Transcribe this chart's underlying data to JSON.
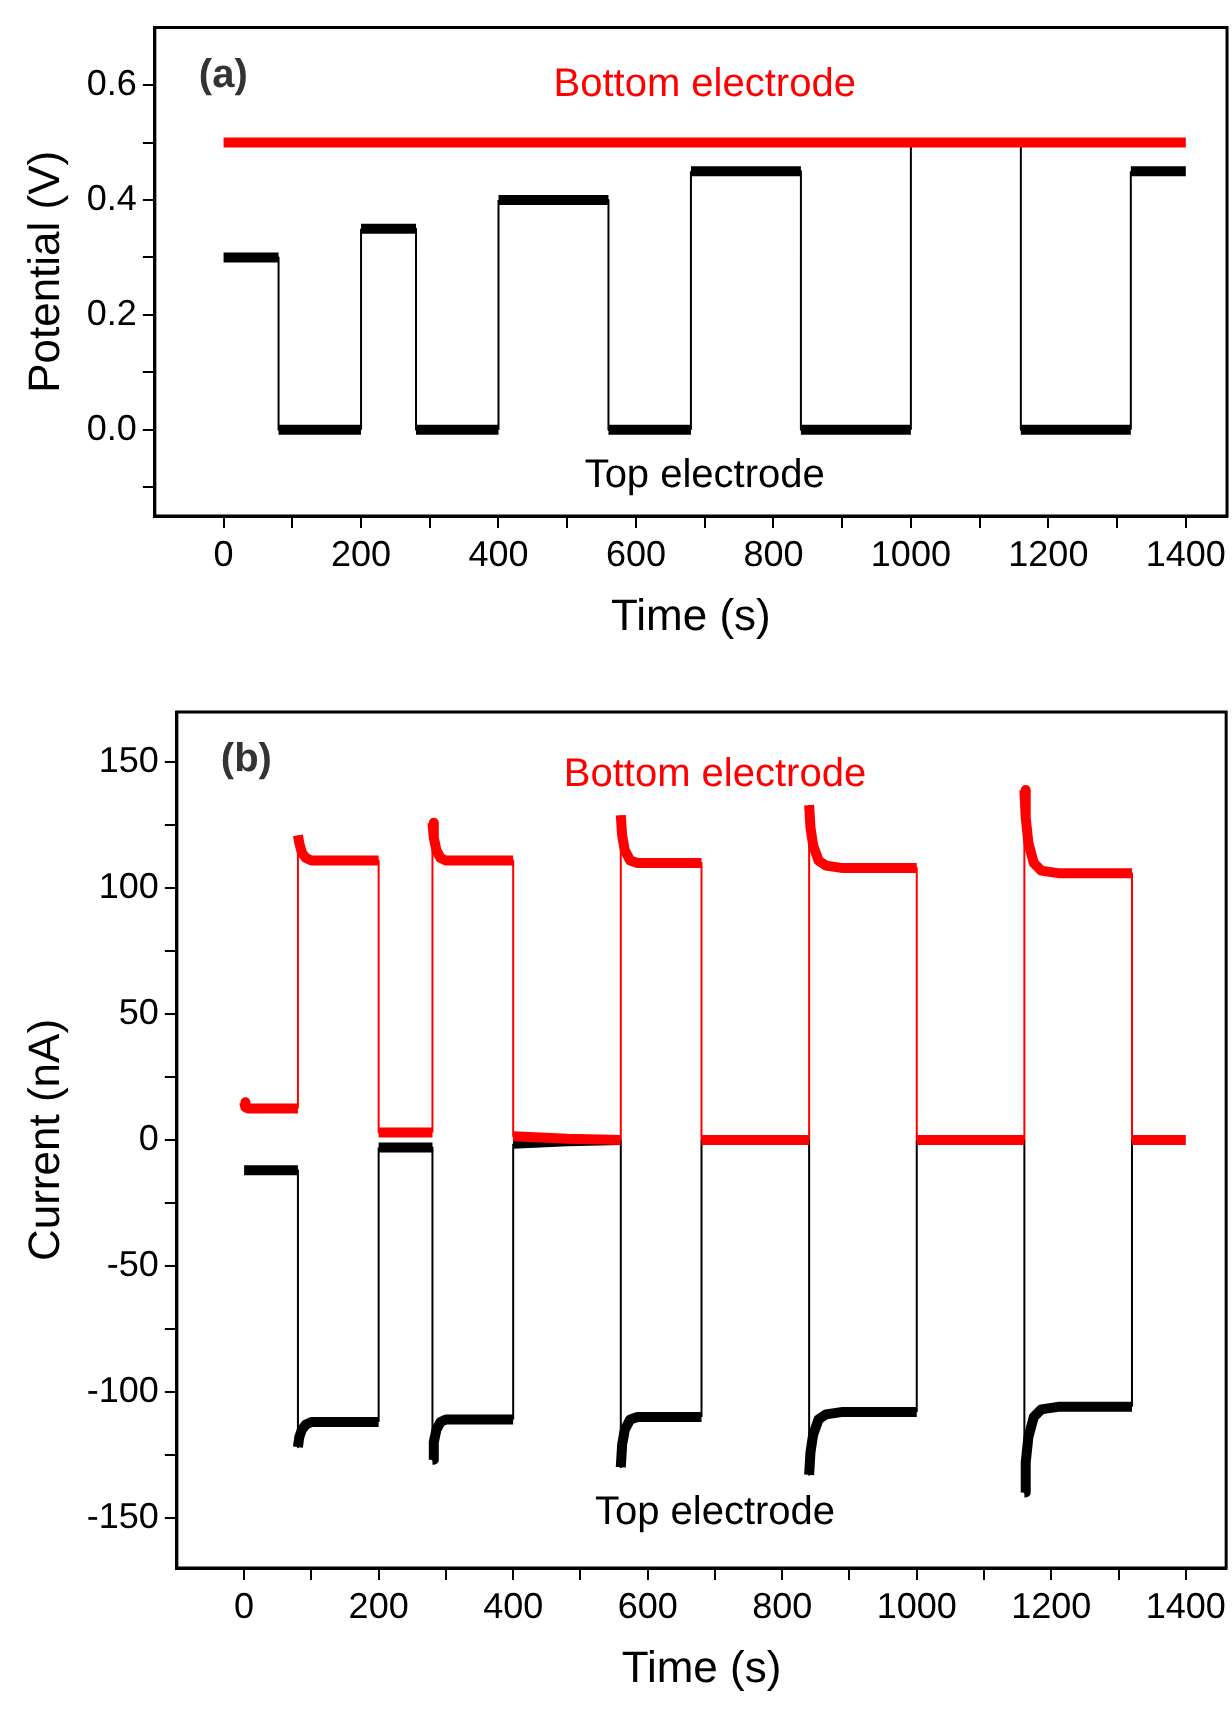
{
  "chart_data": [
    {
      "type": "line",
      "xlabel": "Time (s)",
      "ylabel": "Potential (V)",
      "annotations": [
        "(a)"
      ],
      "xlim": [
        -100,
        1460
      ],
      "ylim": [
        -0.15,
        0.7
      ],
      "xticks": [
        0,
        {
          "value": 100,
          "label": null
        },
        200,
        {
          "value": 300,
          "label": null
        },
        400,
        {
          "value": 500,
          "label": null
        },
        600,
        {
          "value": 700,
          "label": null
        },
        800,
        {
          "value": 900,
          "label": null
        },
        1000,
        {
          "value": 1100,
          "label": null
        },
        1200,
        {
          "value": 1300,
          "label": null
        },
        1400
      ],
      "yticks": [
        {
          "value": -0.1,
          "label": null
        },
        {
          "value": 0,
          "label": "0.0"
        },
        {
          "value": 0.1,
          "label": null
        },
        {
          "value": 0.2,
          "label": "0.2"
        },
        {
          "value": 0.3,
          "label": null
        },
        {
          "value": 0.4,
          "label": "0.4"
        },
        {
          "value": 0.5,
          "label": null
        },
        {
          "value": 0.6,
          "label": "0.6"
        }
      ],
      "grid": false,
      "legend": false,
      "series": [
        {
          "name": "Bottom electrode",
          "color": "#ff0000",
          "x": [
            0,
            1400
          ],
          "values": [
            0.5,
            0.5
          ]
        },
        {
          "name": "Top electrode",
          "color": "#000000",
          "x": [
            0,
            80,
            80,
            200,
            200,
            280,
            280,
            400,
            400,
            560,
            560,
            680,
            680,
            840,
            840,
            1000,
            1000,
            1080,
            1160,
            1160,
            1320,
            1320,
            1400
          ],
          "values": [
            0.3,
            0.3,
            0,
            0,
            0.35,
            0.35,
            0,
            0,
            0.4,
            0.4,
            0,
            0,
            0.45,
            0.45,
            0,
            0,
            0.5,
            null,
            0.5,
            0,
            0,
            0.45,
            0.45
          ]
        }
      ]
    },
    {
      "type": "line",
      "xlabel": "Time (s)",
      "ylabel": "Current (nA)",
      "annotations": [
        "(b)"
      ],
      "xlim": [
        -100,
        1460
      ],
      "ylim": [
        -170,
        170
      ],
      "xticks": [
        0,
        {
          "value": 100,
          "label": null
        },
        200,
        {
          "value": 300,
          "label": null
        },
        400,
        {
          "value": 500,
          "label": null
        },
        600,
        {
          "value": 700,
          "label": null
        },
        800,
        {
          "value": 900,
          "label": null
        },
        1000,
        {
          "value": 1100,
          "label": null
        },
        1200,
        {
          "value": 1300,
          "label": null
        },
        1400
      ],
      "yticks": [
        -150,
        {
          "value": -125,
          "label": null
        },
        -100,
        {
          "value": -75,
          "label": null
        },
        -50,
        {
          "value": -25,
          "label": null
        },
        0,
        {
          "value": 25,
          "label": null
        },
        50,
        {
          "value": 75,
          "label": null
        },
        100,
        {
          "value": 125,
          "label": null
        },
        150
      ],
      "grid": false,
      "legend": false,
      "series": [
        {
          "name": "Bottom electrode",
          "color": "#ff0000",
          "x": [
            0,
            2,
            6,
            80,
            80,
            82,
            86,
            92,
            100,
            120,
            200,
            200,
            280,
            280,
            282,
            286,
            292,
            300,
            320,
            400,
            400,
            480,
            560,
            560,
            562,
            566,
            574,
            585,
            610,
            680,
            680,
            840,
            840,
            842,
            846,
            854,
            865,
            890,
            1000,
            1000,
            1160,
            1160,
            1162,
            1166,
            1174,
            1185,
            1210,
            1320,
            1320,
            1400
          ],
          "values": [
            15,
            13,
            12.5,
            12.5,
            121,
            118,
            114,
            112,
            111,
            111,
            111,
            3,
            3,
            126,
            120,
            115,
            112,
            111,
            111,
            111,
            1.5,
            0.5,
            0,
            129,
            121,
            115,
            111,
            110,
            110,
            110,
            0,
            0,
            133,
            124,
            117,
            111,
            109,
            108,
            108,
            0,
            0,
            139,
            128,
            118,
            110,
            107,
            106,
            106,
            0,
            0
          ]
        },
        {
          "name": "Top electrode",
          "color": "#000000",
          "x": [
            0,
            80,
            80,
            82,
            86,
            92,
            100,
            120,
            200,
            200,
            280,
            280,
            282,
            286,
            292,
            300,
            320,
            400,
            400,
            480,
            560,
            560,
            562,
            566,
            574,
            585,
            610,
            680,
            680,
            760,
            840,
            840,
            842,
            846,
            854,
            865,
            890,
            1000,
            1000,
            1080,
            1160,
            1160,
            1162,
            1166,
            1174,
            1185,
            1210,
            1320,
            1320
          ],
          "values": [
            -12,
            -12,
            -122,
            -118,
            -115,
            -113,
            -112,
            -112,
            -112,
            -3,
            -3,
            -127,
            -120,
            -115,
            -112,
            -111,
            -111,
            -111,
            -1.5,
            -0.5,
            0,
            -130,
            -121,
            -115,
            -111,
            -110,
            -110,
            -110,
            0,
            null,
            0,
            -133,
            -124,
            -117,
            -111,
            -109,
            -108,
            -108,
            0,
            null,
            0,
            -140,
            -128,
            -118,
            -110,
            -107,
            -106,
            -106,
            0
          ]
        }
      ]
    }
  ]
}
